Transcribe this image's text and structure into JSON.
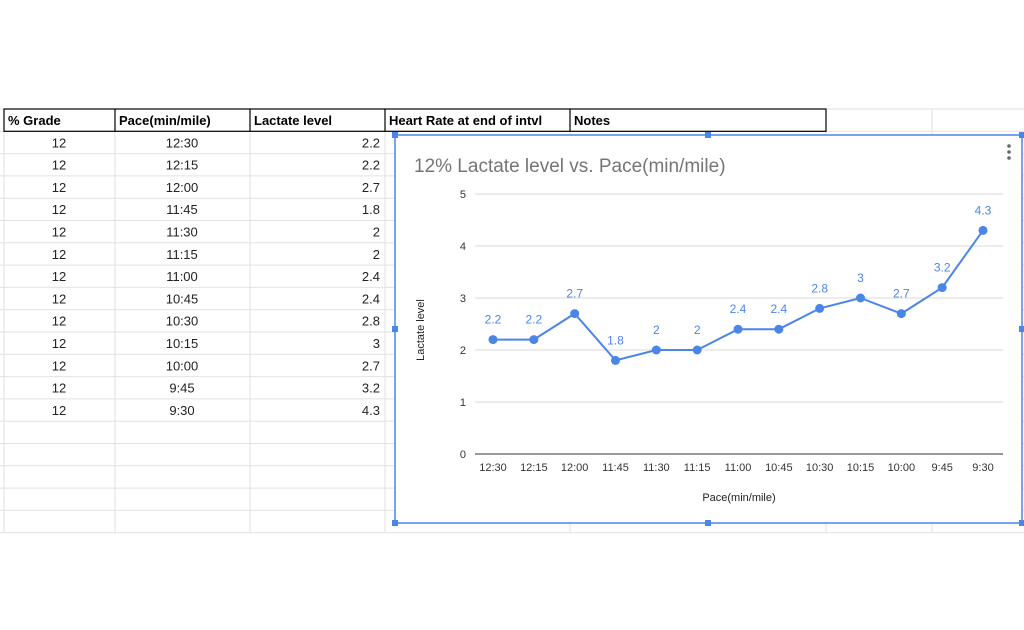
{
  "sheet": {
    "headers": [
      "% Grade",
      "Pace(min/mile)",
      "Lactate level",
      "Heart Rate at end of intvl",
      "Notes"
    ],
    "rows": [
      [
        "12",
        "12:30",
        "2.2"
      ],
      [
        "12",
        "12:15",
        "2.2"
      ],
      [
        "12",
        "12:00",
        "2.7"
      ],
      [
        "12",
        "11:45",
        "1.8"
      ],
      [
        "12",
        "11:30",
        "2"
      ],
      [
        "12",
        "11:15",
        "2"
      ],
      [
        "12",
        "11:00",
        "2.4"
      ],
      [
        "12",
        "10:45",
        "2.4"
      ],
      [
        "12",
        "10:30",
        "2.8"
      ],
      [
        "12",
        "10:15",
        "3"
      ],
      [
        "12",
        "10:00",
        "2.7"
      ],
      [
        "12",
        "9:45",
        "3.2"
      ],
      [
        "12",
        "9:30",
        "4.3"
      ]
    ]
  },
  "chart_data": {
    "type": "line",
    "title": "12% Lactate level vs. Pace(min/mile)",
    "xlabel": "Pace(min/mile)",
    "ylabel": "Lactate level",
    "categories": [
      "12:30",
      "12:15",
      "12:00",
      "11:45",
      "11:30",
      "11:15",
      "11:00",
      "10:45",
      "10:30",
      "10:15",
      "10:00",
      "9:45",
      "9:30"
    ],
    "values": [
      2.2,
      2.2,
      2.7,
      1.8,
      2,
      2,
      2.4,
      2.4,
      2.8,
      3,
      2.7,
      3.2,
      4.3
    ],
    "ylim": [
      0,
      5
    ],
    "yticks": [
      0,
      1,
      2,
      3,
      4,
      5
    ],
    "grid": true,
    "legend": "none",
    "color": "#4a86e8"
  }
}
